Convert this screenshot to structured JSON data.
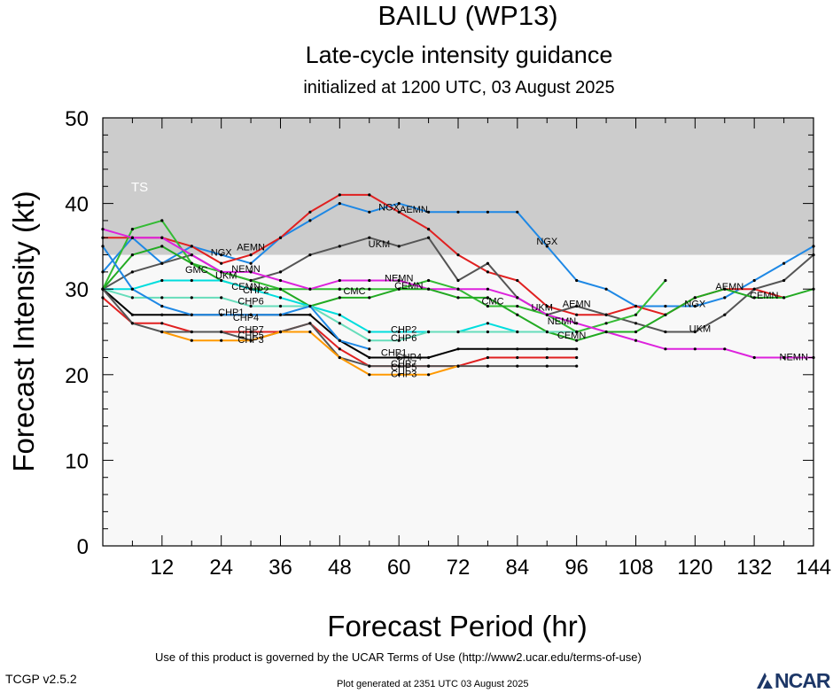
{
  "title": "BAILU (WP13)",
  "subtitle": "Late-cycle intensity guidance",
  "initialized": "initialized at 1200 UTC, 03 August 2025",
  "footer": {
    "terms": "Use of this product is governed by the UCAR Terms of Use (http://www2.ucar.edu/terms-of-use)",
    "version": "TCGP v2.5.2",
    "generated": "Plot generated at 2351 UTC   03 August 2025",
    "logo": "NCAR"
  },
  "colors": {
    "ts_band": "#cccccc",
    "plot_background": "#f8f8f8",
    "logo": "#1d3767"
  },
  "chart_data": {
    "type": "line",
    "xlabel": "Forecast Period (hr)",
    "ylabel": "Forecast Intensity (kt)",
    "xlim": [
      0,
      144
    ],
    "ylim": [
      0,
      50
    ],
    "xticks": [
      12,
      24,
      36,
      48,
      60,
      72,
      84,
      96,
      108,
      120,
      132,
      144
    ],
    "yticks": [
      0,
      10,
      20,
      30,
      40,
      50
    ],
    "bands": [
      {
        "label": "TS",
        "from": 34,
        "to": 50
      }
    ],
    "series": [
      {
        "name": "NGX",
        "color": "#1e88e5",
        "label_at": [
          [
            24,
            34.2
          ],
          [
            58,
            39.5
          ],
          [
            90,
            35.5
          ],
          [
            120,
            28.2
          ]
        ],
        "x": [
          0,
          6,
          12,
          18,
          24,
          30,
          36,
          42,
          48,
          54,
          60,
          66,
          72,
          78,
          84,
          90,
          96,
          102,
          108,
          114,
          120,
          126,
          132,
          138,
          144
        ],
        "y": [
          32,
          36,
          33,
          35,
          34,
          33,
          36,
          38,
          40,
          39,
          40,
          39,
          39,
          39,
          39,
          35,
          31,
          30,
          28,
          28,
          28,
          29,
          31,
          33,
          35
        ]
      },
      {
        "name": "AEMN",
        "color": "#e02020",
        "label_at": [
          [
            30,
            34.8
          ],
          [
            63,
            39.2
          ],
          [
            96,
            28.2
          ],
          [
            127,
            30.2
          ]
        ],
        "x": [
          0,
          6,
          12,
          18,
          24,
          30,
          36,
          42,
          48,
          54,
          60,
          66,
          72,
          78,
          84,
          90,
          96,
          102,
          108,
          114,
          120,
          126,
          132,
          138
        ],
        "y": [
          36,
          36,
          36,
          35,
          33,
          34,
          36,
          39,
          41,
          41,
          39,
          37,
          34,
          32,
          31,
          28,
          27,
          27,
          28,
          27,
          29,
          30,
          30,
          29
        ]
      },
      {
        "name": "UKM",
        "color": "#555555",
        "label_at": [
          [
            25,
            31.5
          ],
          [
            56,
            35.2
          ],
          [
            89,
            27.8
          ],
          [
            121,
            25.3
          ]
        ],
        "x": [
          0,
          6,
          12,
          18,
          24,
          30,
          36,
          42,
          48,
          54,
          60,
          66,
          72,
          78,
          84,
          90,
          96,
          102,
          108,
          114,
          120,
          126,
          132,
          138,
          144
        ],
        "y": [
          30,
          32,
          33,
          34,
          32,
          31,
          32,
          34,
          35,
          36,
          35,
          36,
          31,
          33,
          29,
          27,
          28,
          27,
          26,
          25,
          25,
          27,
          30,
          31,
          34
        ]
      },
      {
        "name": "GMC",
        "color": "#33bb33",
        "label_at": [
          [
            19,
            32.2
          ]
        ],
        "x": [
          0,
          6,
          12,
          18,
          24,
          30,
          36,
          42,
          48
        ],
        "y": [
          30,
          37,
          38,
          33,
          32,
          31,
          30,
          30,
          30
        ]
      },
      {
        "name": "CMC",
        "color": "#33bb33",
        "label_at": [
          [
            51,
            29.7
          ],
          [
            79,
            28.5
          ]
        ],
        "x": [
          48,
          54,
          60,
          66,
          72,
          78,
          84,
          90,
          96,
          102,
          108,
          114
        ],
        "y": [
          30,
          30,
          30,
          31,
          30,
          28,
          28,
          27,
          25,
          26,
          27,
          31
        ]
      },
      {
        "name": "NEMN",
        "color": "#dd22dd",
        "label_at": [
          [
            29,
            32.3
          ],
          [
            60,
            31.2
          ],
          [
            93,
            26.2
          ],
          [
            140,
            22
          ]
        ],
        "x": [
          0,
          6,
          12,
          18,
          24,
          30,
          36,
          42,
          48,
          54,
          60,
          66,
          72,
          78,
          84,
          90,
          96,
          102,
          108,
          114,
          120,
          126,
          132,
          138,
          144
        ],
        "y": [
          37,
          36,
          36,
          34,
          32,
          32,
          31,
          30,
          31,
          31,
          31,
          30,
          30,
          30,
          29,
          27,
          26,
          25,
          24,
          23,
          23,
          23,
          22,
          22,
          22
        ]
      },
      {
        "name": "CEMN",
        "color": "#22aa22",
        "label_at": [
          [
            29,
            30.2
          ],
          [
            62,
            30.3
          ],
          [
            95,
            24.5
          ],
          [
            134,
            29.2
          ]
        ],
        "x": [
          0,
          6,
          12,
          18,
          24,
          30,
          36,
          42,
          48,
          54,
          60,
          66,
          72,
          78,
          84,
          90,
          96,
          102,
          108,
          114,
          120,
          126,
          132,
          138,
          144
        ],
        "y": [
          30,
          34,
          35,
          33,
          31,
          30,
          30,
          28,
          29,
          29,
          30,
          30,
          29,
          29,
          27,
          25,
          24,
          25,
          25,
          27,
          29,
          30,
          29,
          29,
          30
        ]
      },
      {
        "name": "CHP2",
        "color": "#00dddd",
        "label_at": [
          [
            31,
            29.8
          ],
          [
            61,
            25.2
          ]
        ],
        "x": [
          0,
          6,
          12,
          18,
          24,
          30,
          36,
          42,
          48,
          54,
          60,
          66,
          72,
          78,
          84,
          90,
          96
        ],
        "y": [
          30,
          30,
          31,
          31,
          31,
          30,
          29,
          28,
          27,
          25,
          25,
          25,
          25,
          26,
          25,
          25,
          25
        ]
      },
      {
        "name": "CHP6",
        "color": "#66ddbb",
        "label_at": [
          [
            30,
            28.5
          ],
          [
            61,
            24.2
          ]
        ],
        "x": [
          0,
          6,
          12,
          18,
          24,
          30,
          36,
          42,
          48,
          54,
          60,
          66,
          72,
          78,
          84,
          90,
          96
        ],
        "y": [
          30,
          29,
          29,
          29,
          29,
          28,
          28,
          28,
          26,
          24,
          24,
          25,
          25,
          25,
          25,
          25,
          25
        ]
      },
      {
        "name": "CHP1",
        "color": "#000000",
        "label_at": [
          [
            26,
            27.2
          ],
          [
            59,
            22.5
          ]
        ],
        "x": [
          0,
          6,
          12,
          18,
          24,
          30,
          36,
          42,
          48,
          54,
          60,
          66,
          72,
          78,
          84,
          90,
          96
        ],
        "y": [
          30,
          27,
          27,
          27,
          27,
          27,
          27,
          27,
          24,
          22,
          22,
          22,
          23,
          23,
          23,
          23,
          23
        ]
      },
      {
        "name": "CHP4",
        "color": "#1e88e5",
        "label_at": [
          [
            29,
            26.6
          ],
          [
            62,
            22.0
          ]
        ],
        "x": [
          0,
          6,
          12,
          18,
          24,
          30,
          36,
          42,
          48,
          54
        ],
        "y": [
          35,
          30,
          28,
          27,
          27,
          27,
          27,
          28,
          24,
          23
        ]
      },
      {
        "name": "CHP7",
        "color": "#e02020",
        "label_at": [
          [
            30,
            25.2
          ],
          [
            61,
            21.2
          ]
        ],
        "x": [
          0,
          6,
          12,
          18,
          24,
          30,
          36,
          42,
          48,
          54,
          60,
          66,
          72,
          78,
          84,
          90,
          96
        ],
        "y": [
          29,
          26,
          26,
          25,
          25,
          25,
          25,
          26,
          23,
          21,
          21,
          21,
          21,
          22,
          22,
          22,
          22
        ]
      },
      {
        "name": "CHP5",
        "color": "#555555",
        "label_at": [
          [
            30,
            24.5
          ],
          [
            61,
            20.8
          ]
        ],
        "x": [
          0,
          6,
          12,
          18,
          24,
          30,
          36,
          42,
          48,
          54,
          60,
          66,
          72,
          78,
          84,
          90,
          96
        ],
        "y": [
          30,
          26,
          25,
          25,
          25,
          24,
          25,
          26,
          22,
          21,
          21,
          21,
          21,
          21,
          21,
          21,
          21
        ]
      },
      {
        "name": "CHP3",
        "color": "#ff9900",
        "label_at": [
          [
            30,
            24.0
          ],
          [
            61,
            20.0
          ]
        ],
        "x": [
          12,
          18,
          24,
          30,
          36,
          42,
          48,
          54,
          60,
          66,
          72
        ],
        "y": [
          25,
          24,
          24,
          24,
          25,
          25,
          22,
          20,
          20,
          20,
          21
        ]
      }
    ]
  }
}
